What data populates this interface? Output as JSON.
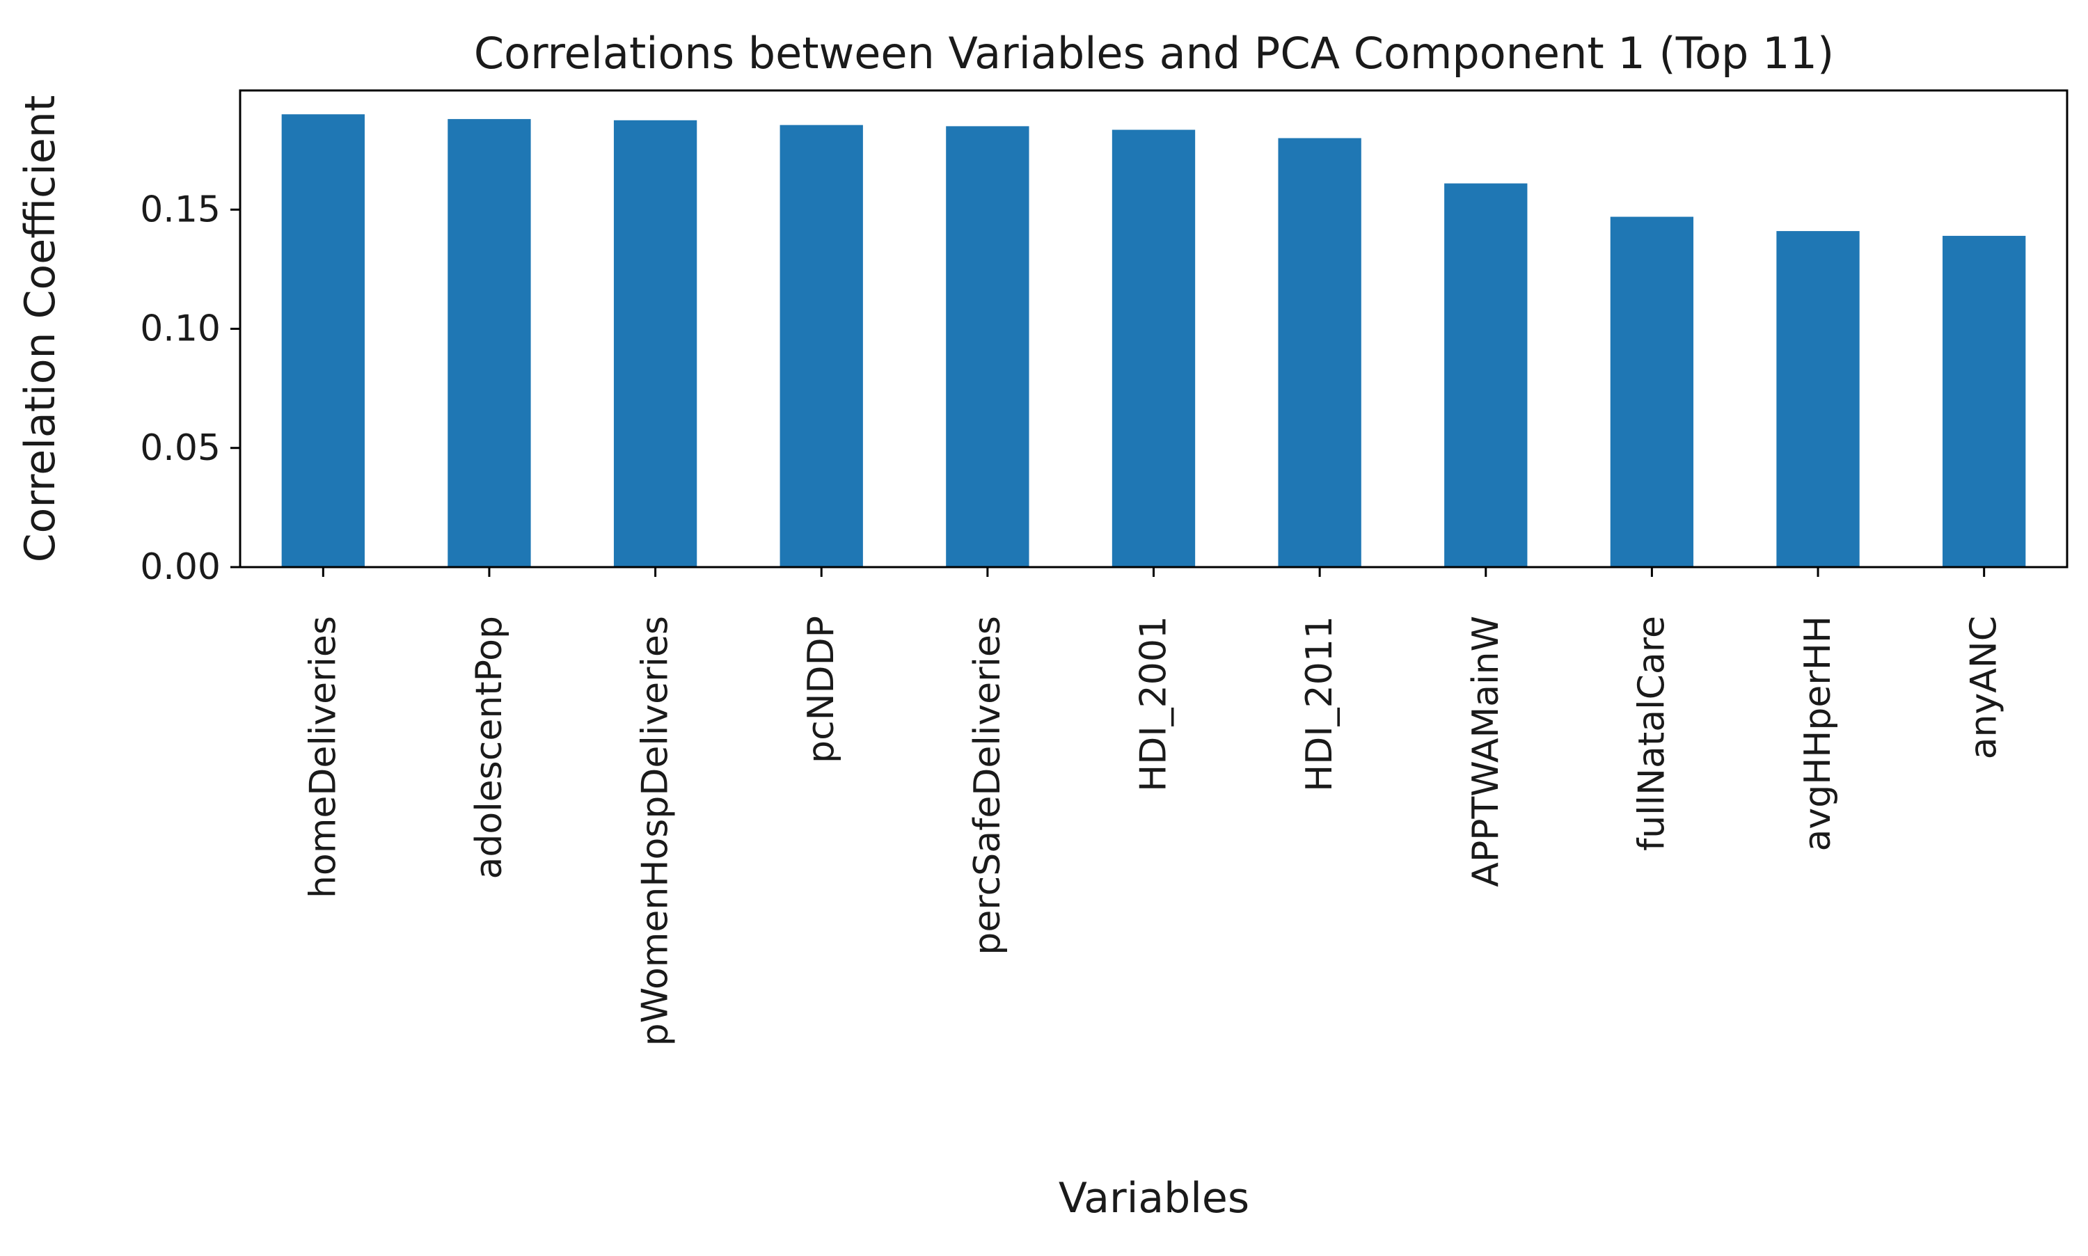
{
  "chart_data": {
    "type": "bar",
    "title": "Correlations between Variables and PCA Component 1 (Top 11)",
    "xlabel": "Variables",
    "ylabel": "Correlation Coefficient",
    "categories": [
      "homeDeliveries",
      "adolescentPop",
      "pWomenHospDeliveries",
      "pcNDDP",
      "percSafeDeliveries",
      "HDI_2001",
      "HDI_2011",
      "APPTWAMainW",
      "fullNatalCare",
      "avgHHperHH",
      "anyANC"
    ],
    "values": [
      0.19,
      0.188,
      0.1875,
      0.1855,
      0.185,
      0.1835,
      0.18,
      0.161,
      0.147,
      0.141,
      0.139
    ],
    "ylim": [
      0,
      0.2
    ],
    "yticks": [
      0.0,
      0.05,
      0.1,
      0.15
    ],
    "ytick_labels": [
      "0.00",
      "0.05",
      "0.10",
      "0.15"
    ],
    "grid": false,
    "legend": "none",
    "bar_color": "#1f77b4"
  }
}
